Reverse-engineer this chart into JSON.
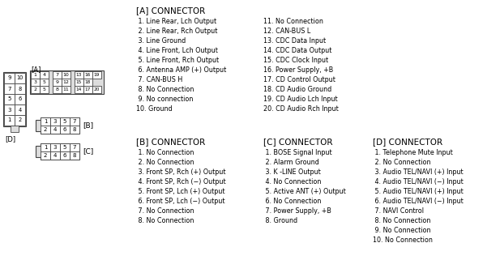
{
  "bg_color": "#ffffff",
  "text_color": "#000000",
  "title_a": "[A] CONNECTOR",
  "title_b": "[B] CONNECTOR",
  "title_c": "[C] CONNECTOR",
  "title_d": "[D] CONNECTOR",
  "connector_a_left": [
    " 1. Line Rear, Lch Output",
    " 2. Line Rear, Rch Output",
    " 3. Line Ground",
    " 4. Line Front, Lch Output",
    " 5. Line Front, Rch Output",
    " 6. Antenna AMP (+) Output",
    " 7. CAN-BUS H",
    " 8. No Connection",
    " 9. No connection",
    "10. Ground"
  ],
  "connector_a_right": [
    "11. No Connection",
    "12. CAN-BUS L",
    "13. CDC Data Input",
    "14. CDC Data Output",
    "15. CDC Clock Input",
    "16. Power Supply, +B",
    "17. CD Control Output",
    "18. CD Audio Ground",
    "19. CD Audio Lch Input",
    "20. CD Audio Rch Input"
  ],
  "connector_b": [
    " 1. No Connection",
    " 2. No Connection",
    " 3. Front SP, Rch (+) Output",
    " 4. Front SP, Rch (−) Output",
    " 5. Front SP, Lch (+) Output",
    " 6. Front SP, Lch (−) Output",
    " 7. No Connection",
    " 8. No Connection"
  ],
  "connector_c": [
    " 1. BOSE Signal Input",
    " 2. Alarm Ground",
    " 3. K -LINE Output",
    " 4. No Connection",
    " 5. Active ANT (+) Output",
    " 6. No Connection",
    " 7. Power Supply, +B",
    " 8. Ground"
  ],
  "connector_d": [
    " 1. Telephone Mute Input",
    " 2. No Connection",
    " 3. Audio TEL/NAVI (+) Input",
    " 4. Audio TEL/NAVI (−) Input",
    " 5. Audio TEL/NAVI (+) Input",
    " 6. Audio TEL/NAVI (−) Input",
    " 7. NAVI Control",
    " 8. No Connection",
    " 9. No Connection",
    "10. No Connection"
  ]
}
